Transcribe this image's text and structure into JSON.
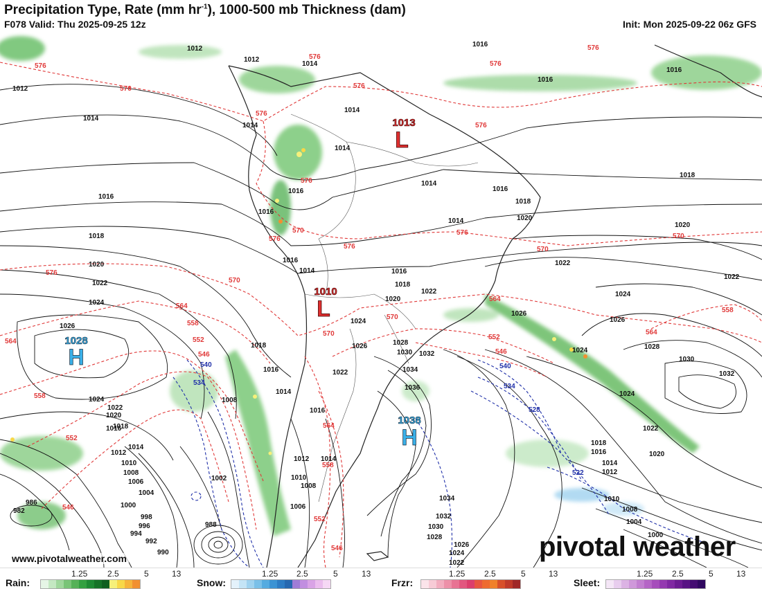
{
  "header": {
    "title_main": "Precipitation Type, Rate (mm hr",
    "title_sup": "-1",
    "title_rest": "), 1000-500 mb Thickness (dam)",
    "valid": "F078 Valid: Thu 2025-09-25 12z",
    "init": "Init: Mon 2025-09-22 06z GFS"
  },
  "footer": {
    "url": "www.pivotalweather.com",
    "brand": "pivotal weather"
  },
  "pressure_centers": [
    {
      "type": "H",
      "value": "1028",
      "color": "#3ab0e8"
    },
    {
      "type": "H",
      "value": "1038",
      "color": "#3ab0e8"
    },
    {
      "type": "L",
      "value": "1013",
      "color": "#e03030"
    },
    {
      "type": "L",
      "value": "1010",
      "color": "#e03030"
    }
  ],
  "isobar_labels": [
    "1012",
    "1014",
    "1016",
    "1018",
    "1020",
    "1022",
    "1024",
    "1026",
    "1028",
    "1030",
    "1032",
    "1034",
    "1036",
    "1010",
    "1008",
    "1006",
    "1004",
    "1002",
    "1000",
    "998",
    "996",
    "994",
    "992",
    "990",
    "988",
    "986",
    "982"
  ],
  "thickness_labels": [
    "576",
    "570",
    "564",
    "558",
    "552",
    "546",
    "540",
    "534",
    "528",
    "522"
  ],
  "legend": {
    "rain": {
      "label": "Rain:",
      "ticks": [
        "1.25",
        "2.5",
        "5",
        "13"
      ],
      "colors": [
        "#e6f5e6",
        "#c4e8c2",
        "#9fd79c",
        "#79c477",
        "#55b157",
        "#33a040",
        "#1e8a33",
        "#157327",
        "#0f5f1f",
        "#f6f07a",
        "#f8d848",
        "#f6b43a",
        "#f29030"
      ]
    },
    "snow": {
      "label": "Snow:",
      "ticks": [
        "1.25",
        "2.5",
        "5",
        "13"
      ],
      "colors": [
        "#e4f2fb",
        "#c4e4f6",
        "#9fd2ef",
        "#7ac0e8",
        "#55abe0",
        "#3b93d4",
        "#2d7cc4",
        "#2668b0",
        "#9f7cd6",
        "#c18ee0",
        "#d9a3e6",
        "#ebbdee",
        "#f6d8f5"
      ]
    },
    "frzr": {
      "label": "Frzr:",
      "ticks": [
        "1.25",
        "2.5",
        "5",
        "13"
      ],
      "colors": [
        "#fbe4ea",
        "#f7cbd6",
        "#f2adbf",
        "#ed90a8",
        "#e87393",
        "#e2577f",
        "#dc3e6c",
        "#e85540",
        "#ee6a30",
        "#f0812a",
        "#d8502a",
        "#c03a2a",
        "#a02828"
      ]
    },
    "sleet": {
      "label": "Sleet:",
      "ticks": [
        "1.25",
        "2.5",
        "5",
        "13"
      ],
      "colors": [
        "#f4e6f6",
        "#e8cdee",
        "#dcb3e4",
        "#cf98da",
        "#c27ed0",
        "#b565c6",
        "#a64dbb",
        "#943ab0",
        "#8029a2",
        "#6c1c92",
        "#581383",
        "#440c72",
        "#300860"
      ]
    }
  }
}
